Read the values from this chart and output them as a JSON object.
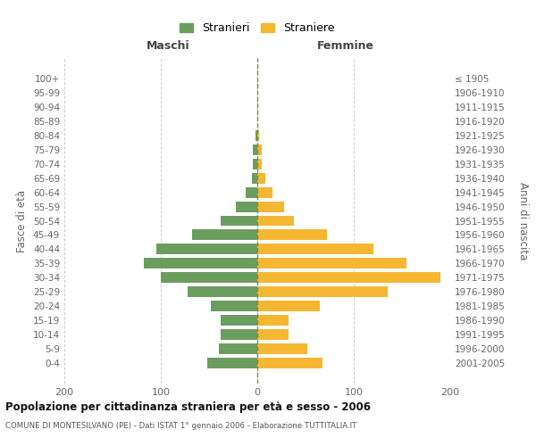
{
  "age_groups": [
    "100+",
    "95-99",
    "90-94",
    "85-89",
    "80-84",
    "75-79",
    "70-74",
    "65-69",
    "60-64",
    "55-59",
    "50-54",
    "45-49",
    "40-44",
    "35-39",
    "30-34",
    "25-29",
    "20-24",
    "15-19",
    "10-14",
    "5-9",
    "0-4"
  ],
  "birth_years": [
    "≤ 1905",
    "1906-1910",
    "1911-1915",
    "1916-1920",
    "1921-1925",
    "1926-1930",
    "1931-1935",
    "1936-1940",
    "1941-1945",
    "1946-1950",
    "1951-1955",
    "1956-1960",
    "1961-1965",
    "1966-1970",
    "1971-1975",
    "1976-1980",
    "1981-1985",
    "1986-1990",
    "1991-1995",
    "1996-2000",
    "2001-2005"
  ],
  "males": [
    0,
    0,
    0,
    0,
    2,
    5,
    5,
    6,
    12,
    22,
    38,
    68,
    105,
    118,
    100,
    72,
    48,
    38,
    38,
    40,
    52
  ],
  "females": [
    0,
    0,
    1,
    0,
    2,
    5,
    5,
    8,
    16,
    28,
    38,
    72,
    120,
    155,
    190,
    135,
    65,
    32,
    32,
    52,
    68
  ],
  "male_color": "#6b9e5e",
  "female_color": "#f5b731",
  "dashed_line_color": "#888833",
  "grid_color": "#cccccc",
  "bg_color": "#ffffff",
  "title": "Popolazione per cittadinanza straniera per età e sesso - 2006",
  "subtitle": "COMUNE DI MONTESILVANO (PE) - Dati ISTAT 1° gennaio 2006 - Elaborazione TUTTITALIA.IT",
  "label_maschi": "Maschi",
  "label_femmine": "Femmine",
  "ylabel_left": "Fasce di età",
  "ylabel_right": "Anni di nascita",
  "legend_male": "Stranieri",
  "legend_female": "Straniere",
  "xlim": 200,
  "bar_height": 0.75
}
